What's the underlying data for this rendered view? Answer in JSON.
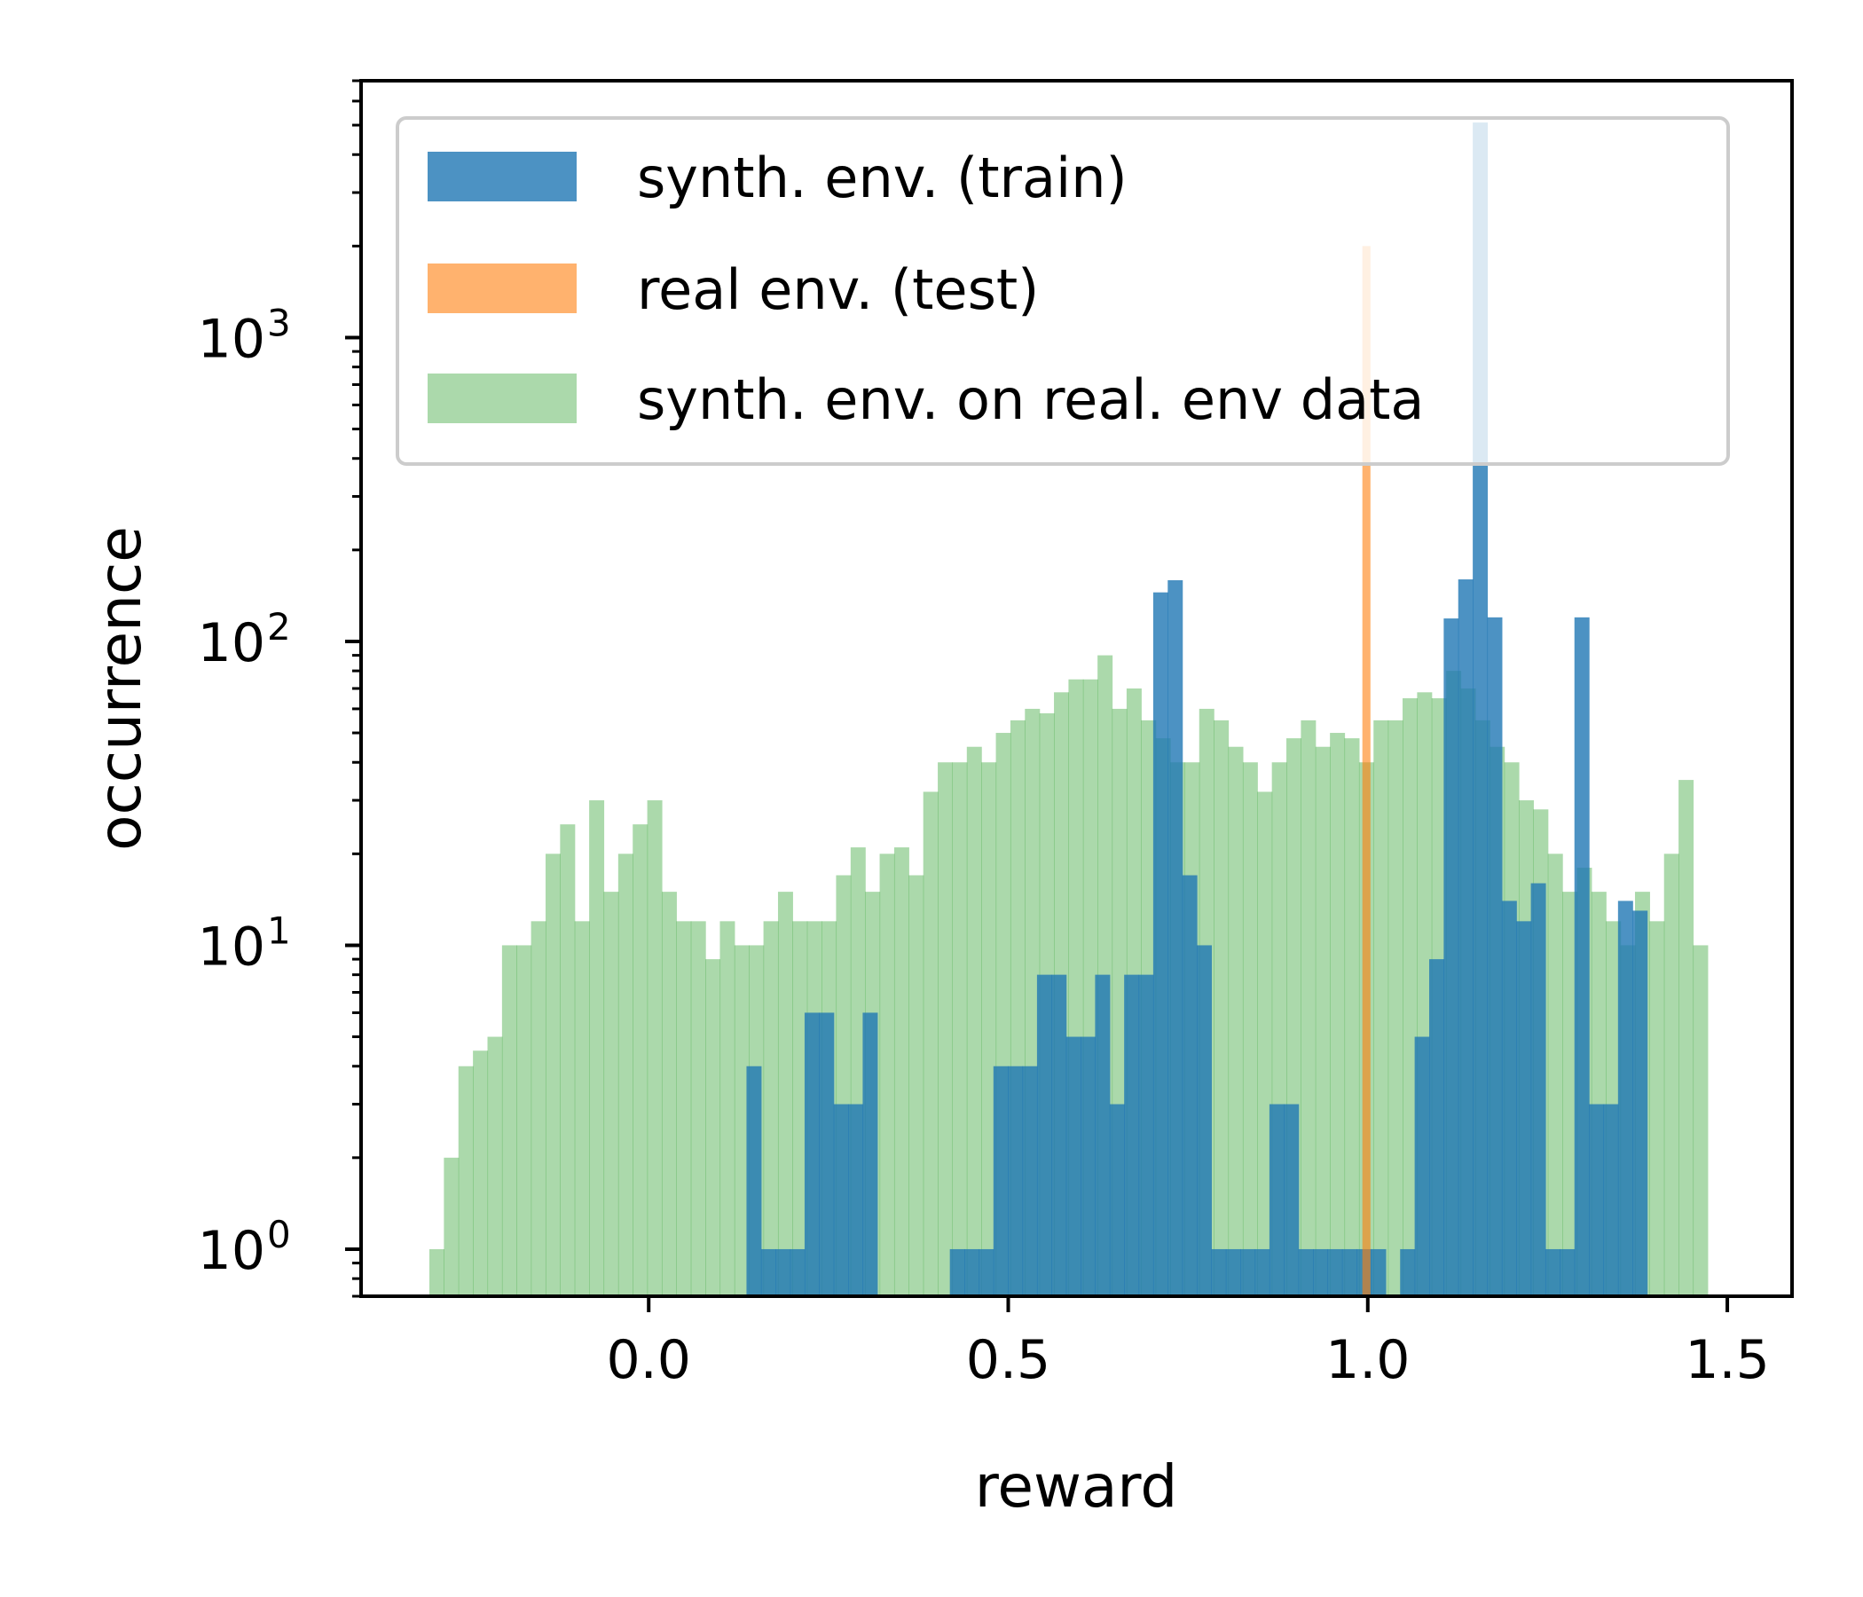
{
  "chart_data": {
    "type": "histogram",
    "xlabel": "reward",
    "ylabel": "occurrence",
    "yscale": "log",
    "xlim": [
      -0.4,
      1.59
    ],
    "ylim": [
      0.7,
      7000
    ],
    "x_ticks": [
      {
        "value": 0.0,
        "label": "0.0"
      },
      {
        "value": 0.5,
        "label": "0.5"
      },
      {
        "value": 1.0,
        "label": "1.0"
      },
      {
        "value": 1.5,
        "label": "1.5"
      }
    ],
    "y_ticks": [
      {
        "value": 1,
        "base": "10",
        "exp": "0"
      },
      {
        "value": 10,
        "base": "10",
        "exp": "1"
      },
      {
        "value": 100,
        "base": "10",
        "exp": "2"
      },
      {
        "value": 1000,
        "base": "10",
        "exp": "3"
      }
    ],
    "legend": {
      "position": "upper-left"
    },
    "series": [
      {
        "name": "synth. env. on real. env data",
        "color": "#2ca02c",
        "alpha": 0.4,
        "bin_start": -0.305,
        "bin_width": 0.0202,
        "counts": [
          1,
          2,
          4,
          4.5,
          5,
          10,
          10,
          12,
          20,
          25,
          12,
          30,
          15,
          20,
          25,
          30,
          15,
          12,
          12,
          9,
          12,
          10,
          10,
          12,
          15,
          12,
          12,
          12,
          17,
          21,
          15,
          20,
          21,
          17,
          32,
          40,
          40,
          45,
          40,
          50,
          55,
          60,
          58,
          68,
          75,
          75,
          90,
          60,
          70,
          55,
          48,
          40,
          40,
          60,
          55,
          45,
          40,
          32,
          40,
          48,
          55,
          45,
          50,
          48,
          40,
          55,
          55,
          65,
          68,
          65,
          80,
          70,
          55,
          45,
          40,
          30,
          28,
          20,
          15,
          18,
          15,
          12,
          10,
          15,
          12,
          20,
          35,
          10
        ]
      },
      {
        "name": "synth. env. (train)",
        "color": "#1f77b4",
        "alpha": 0.8,
        "bin_start": 0.136,
        "bin_width": 0.0202,
        "counts": [
          4,
          1,
          1,
          1,
          6,
          6,
          3,
          3,
          6,
          0,
          0,
          0,
          0,
          0,
          1,
          1,
          1,
          4,
          4,
          4,
          8,
          8,
          5,
          5,
          8,
          3,
          8,
          8,
          145,
          159,
          17,
          10,
          1,
          1,
          1,
          1,
          3,
          3,
          1,
          1,
          1,
          1,
          1,
          1,
          0,
          1,
          5,
          9,
          119,
          160,
          5100,
          120,
          14,
          12,
          16,
          1,
          1,
          120,
          3,
          3,
          14,
          13
        ]
      },
      {
        "name": "real env. (test)",
        "color": "#ff7f0e",
        "alpha": 0.6,
        "bin_start": 0.9925,
        "bin_width": 0.0105,
        "counts": [
          2000
        ]
      }
    ]
  }
}
